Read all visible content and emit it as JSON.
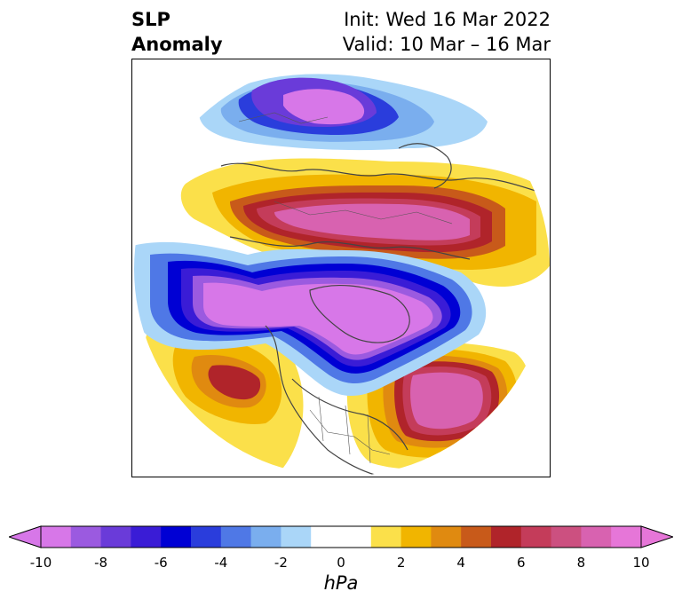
{
  "title": {
    "left_line1": "SLP",
    "left_line2": "Anomaly",
    "right_line1": "Init: Wed 16 Mar 2022",
    "right_line2": "Valid: 10 Mar – 16 Mar"
  },
  "colorbar": {
    "unit_label": "hPa",
    "ticks": [
      "-10",
      "-8",
      "-6",
      "-4",
      "-2",
      "0",
      "2",
      "4",
      "6",
      "8",
      "10"
    ],
    "colors": [
      "#d777e8",
      "#9b5ae0",
      "#6a3bd9",
      "#3a1cd6",
      "#0000d4",
      "#2a3ddc",
      "#4f78e6",
      "#7aaeee",
      "#aad6f8",
      "#ffffff",
      "#ffffff",
      "#fbe04a",
      "#f1b500",
      "#e08a10",
      "#c85a1a",
      "#b0242a",
      "#c43c5a",
      "#cc5080",
      "#d862b0",
      "#e676d8"
    ],
    "extend": "both"
  },
  "map": {
    "projection": "north-polar-stereographic",
    "field": "sea-level-pressure-anomaly"
  }
}
